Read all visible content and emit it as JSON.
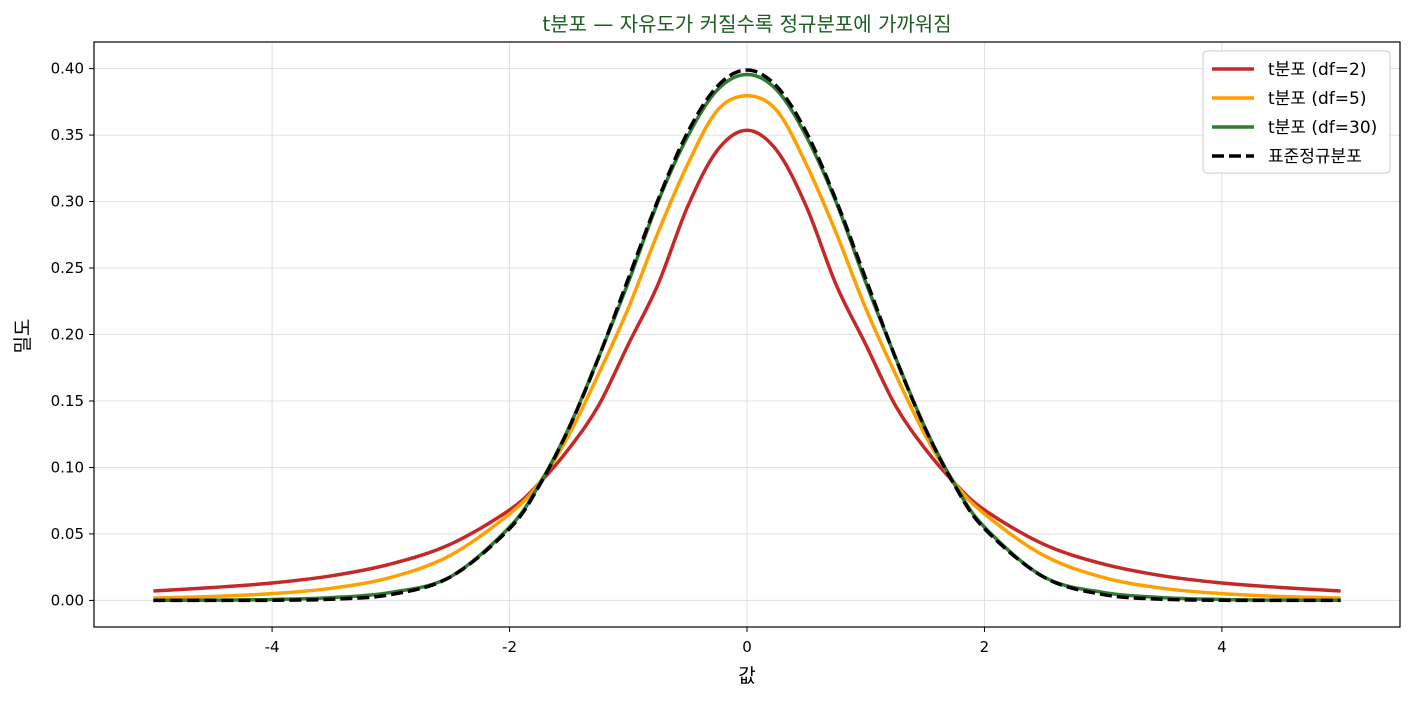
{
  "chart_data": {
    "type": "line",
    "title": "t분포 — 자유도가 커질수록 정규분포에 가까워짐",
    "xlabel": "값",
    "ylabel": "밀도",
    "xlim": [
      -5.5,
      5.5
    ],
    "ylim": [
      -0.02,
      0.42
    ],
    "x_ticks": [
      -4,
      -2,
      0,
      2,
      4
    ],
    "x_tick_labels": [
      "-4",
      "-2",
      "0",
      "2",
      "4"
    ],
    "y_ticks": [
      0.0,
      0.05,
      0.1,
      0.15,
      0.2,
      0.25,
      0.3,
      0.35,
      0.4
    ],
    "y_tick_labels": [
      "0.00",
      "0.05",
      "0.10",
      "0.15",
      "0.20",
      "0.25",
      "0.30",
      "0.35",
      "0.40"
    ],
    "grid": true,
    "legend_position": "top-right",
    "x": [
      -5,
      -4.5,
      -4,
      -3.5,
      -3,
      -2.5,
      -2,
      -1.75,
      -1.5,
      -1.25,
      -1,
      -0.75,
      -0.5,
      -0.25,
      0,
      0.25,
      0.5,
      0.75,
      1,
      1.25,
      1.5,
      1.75,
      2,
      2.5,
      3,
      3.5,
      4,
      4.5,
      5
    ],
    "series": [
      {
        "name": "t분포 (df=2)",
        "color": "#c62828",
        "dash": "solid",
        "values": [
          0.0071,
          0.0097,
          0.0131,
          0.0185,
          0.0274,
          0.0422,
          0.068,
          0.0882,
          0.1141,
          0.1466,
          0.1925,
          0.2376,
          0.2962,
          0.3385,
          0.3536,
          0.3385,
          0.2962,
          0.2376,
          0.1925,
          0.1466,
          0.1141,
          0.0882,
          0.068,
          0.0422,
          0.0274,
          0.0185,
          0.0131,
          0.0097,
          0.0071
        ]
      },
      {
        "name": "t분포 (df=5)",
        "color": "#ffa000",
        "dash": "solid",
        "values": [
          0.0018,
          0.0029,
          0.0051,
          0.0091,
          0.0173,
          0.0338,
          0.0651,
          0.0884,
          0.1245,
          0.1703,
          0.2197,
          0.2766,
          0.3279,
          0.3686,
          0.3796,
          0.3686,
          0.3279,
          0.2766,
          0.2197,
          0.1703,
          0.1245,
          0.0884,
          0.0651,
          0.0338,
          0.0173,
          0.0091,
          0.0051,
          0.0029,
          0.0018
        ]
      },
      {
        "name": "t분포 (df=30)",
        "color": "#2e7d32",
        "dash": "solid",
        "values": [
          0.0001,
          0.0002,
          0.0007,
          0.0021,
          0.006,
          0.0177,
          0.0551,
          0.0871,
          0.1299,
          0.1829,
          0.2392,
          0.2997,
          0.349,
          0.384,
          0.3956,
          0.384,
          0.349,
          0.2997,
          0.2392,
          0.1829,
          0.1299,
          0.0871,
          0.0551,
          0.0177,
          0.006,
          0.0021,
          0.0007,
          0.0002,
          0.0001
        ]
      },
      {
        "name": "표준정규분포",
        "color": "#000000",
        "dash": "dashed",
        "values": [
          0.0,
          0.0,
          0.0001,
          0.0009,
          0.0044,
          0.0175,
          0.054,
          0.0863,
          0.1295,
          0.1826,
          0.242,
          0.3011,
          0.3521,
          0.3867,
          0.3989,
          0.3867,
          0.3521,
          0.3011,
          0.242,
          0.1826,
          0.1295,
          0.0863,
          0.054,
          0.0175,
          0.0044,
          0.0009,
          0.0001,
          0.0,
          0.0
        ]
      }
    ]
  },
  "colors": {
    "title": "#1b5e20",
    "grid": "#e0e0e0",
    "axis": "#000000"
  }
}
